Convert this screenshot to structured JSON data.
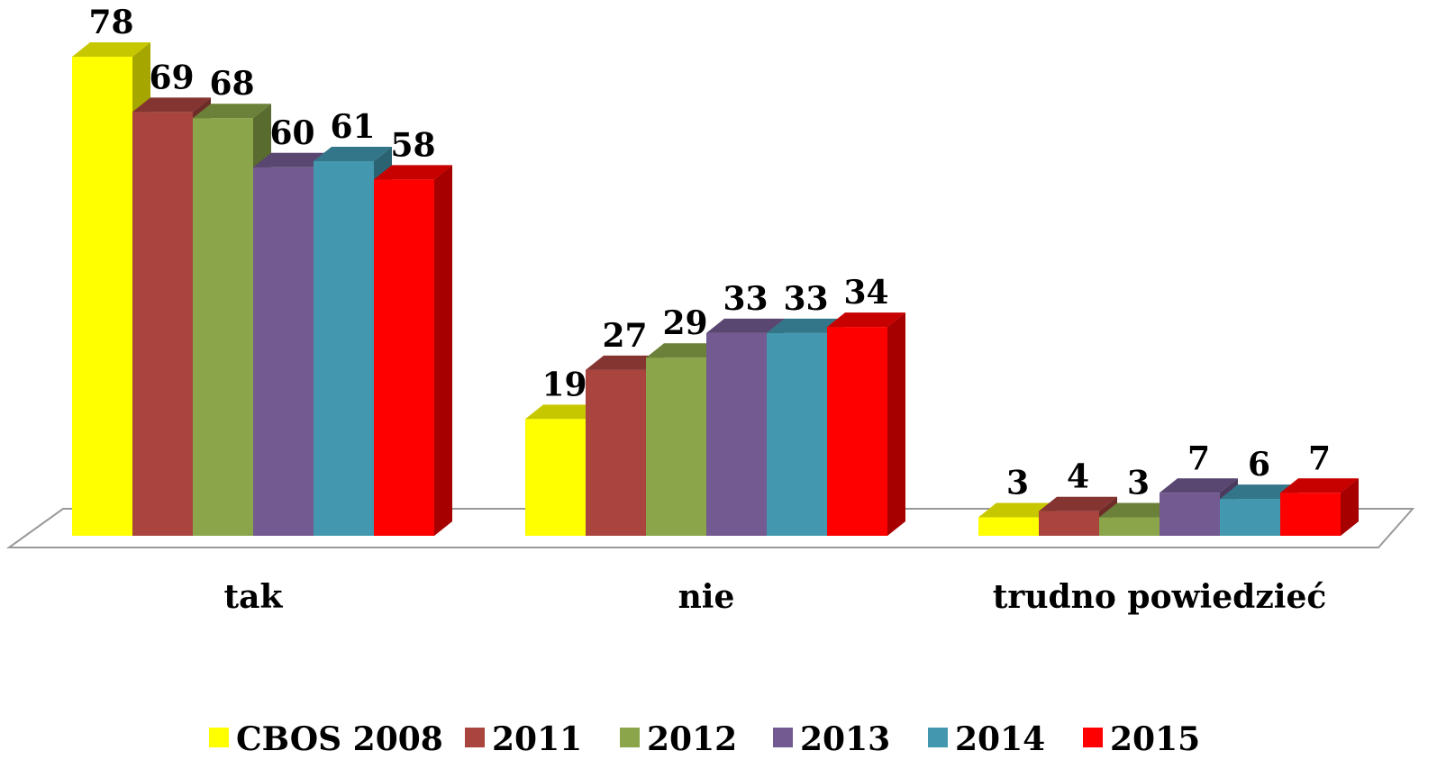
{
  "chart_data": {
    "type": "bar3d",
    "categories": [
      "tak",
      "nie",
      "trudno powiedzieć"
    ],
    "series": [
      {
        "name": "CBOS 2008",
        "color": "#ffff00",
        "values": [
          78,
          19,
          3
        ]
      },
      {
        "name": "2011",
        "color": "#a9443f",
        "values": [
          69,
          27,
          4
        ]
      },
      {
        "name": "2012",
        "color": "#8aa54a",
        "values": [
          68,
          29,
          3
        ]
      },
      {
        "name": "2013",
        "color": "#735a91",
        "values": [
          60,
          33,
          7
        ]
      },
      {
        "name": "2014",
        "color": "#4398b0",
        "values": [
          61,
          33,
          6
        ]
      },
      {
        "name": "2015",
        "color": "#ff0000",
        "values": [
          58,
          34,
          7
        ]
      }
    ],
    "legend": "bottom"
  }
}
